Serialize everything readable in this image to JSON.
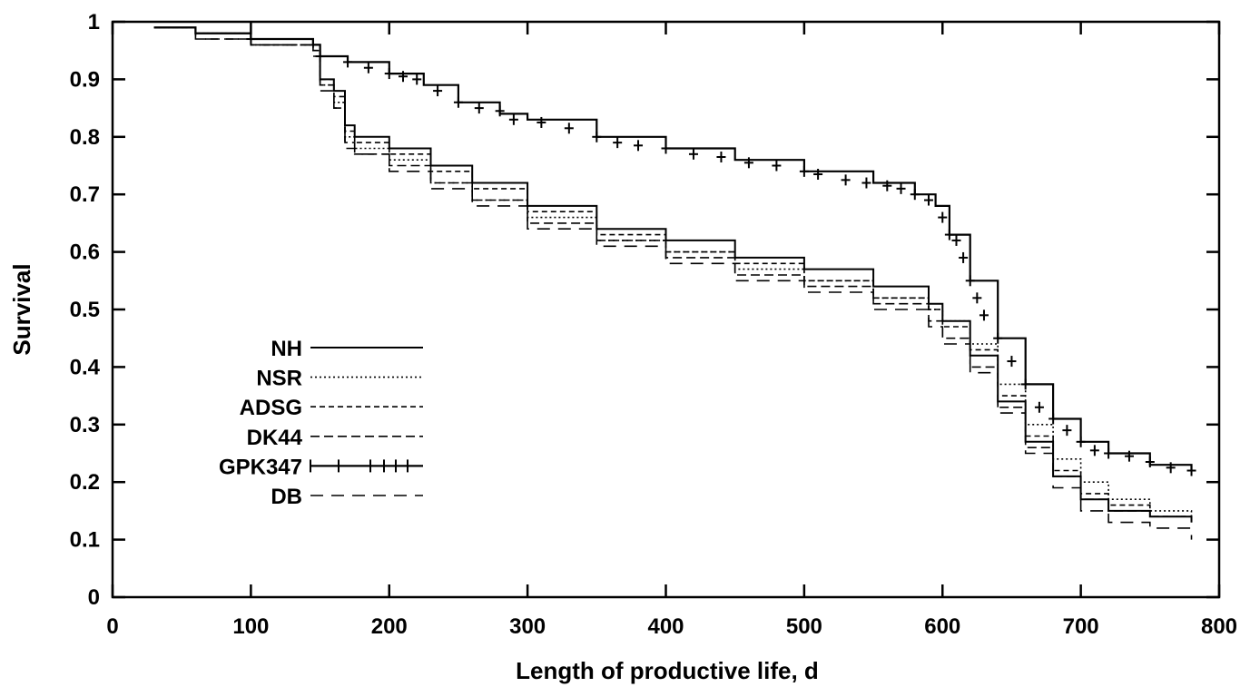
{
  "chart_data": {
    "type": "line",
    "title": "",
    "xlabel": "Length of productive life, d",
    "ylabel": "Survival",
    "xlim": [
      0,
      800
    ],
    "ylim": [
      0,
      1
    ],
    "xticks": [
      "0",
      "100",
      "200",
      "300",
      "400",
      "500",
      "600",
      "700",
      "800"
    ],
    "yticks": [
      "0",
      "0.1",
      "0.2",
      "0.3",
      "0.4",
      "0.5",
      "0.6",
      "0.7",
      "0.8",
      "0.9",
      "1"
    ],
    "grid": false,
    "legend_position": "left",
    "series": [
      {
        "name": "NH",
        "style": "solid",
        "points": [
          [
            30,
            0.99
          ],
          [
            60,
            0.98
          ],
          [
            100,
            0.97
          ],
          [
            145,
            0.96
          ],
          [
            150,
            0.9
          ],
          [
            160,
            0.88
          ],
          [
            168,
            0.82
          ],
          [
            175,
            0.8
          ],
          [
            200,
            0.78
          ],
          [
            230,
            0.75
          ],
          [
            260,
            0.72
          ],
          [
            300,
            0.68
          ],
          [
            350,
            0.64
          ],
          [
            400,
            0.62
          ],
          [
            450,
            0.59
          ],
          [
            500,
            0.57
          ],
          [
            550,
            0.54
          ],
          [
            590,
            0.51
          ],
          [
            600,
            0.48
          ],
          [
            620,
            0.42
          ],
          [
            640,
            0.34
          ],
          [
            660,
            0.27
          ],
          [
            680,
            0.21
          ],
          [
            700,
            0.17
          ],
          [
            720,
            0.15
          ],
          [
            750,
            0.14
          ],
          [
            780,
            0.13
          ]
        ]
      },
      {
        "name": "NSR",
        "style": "dotted",
        "points": [
          [
            30,
            0.99
          ],
          [
            60,
            0.98
          ],
          [
            100,
            0.96
          ],
          [
            145,
            0.95
          ],
          [
            150,
            0.89
          ],
          [
            160,
            0.86
          ],
          [
            168,
            0.8
          ],
          [
            175,
            0.78
          ],
          [
            200,
            0.76
          ],
          [
            230,
            0.72
          ],
          [
            260,
            0.69
          ],
          [
            300,
            0.66
          ],
          [
            350,
            0.62
          ],
          [
            400,
            0.6
          ],
          [
            450,
            0.57
          ],
          [
            500,
            0.55
          ],
          [
            550,
            0.52
          ],
          [
            590,
            0.5
          ],
          [
            600,
            0.48
          ],
          [
            620,
            0.44
          ],
          [
            640,
            0.37
          ],
          [
            660,
            0.3
          ],
          [
            680,
            0.24
          ],
          [
            700,
            0.2
          ],
          [
            720,
            0.17
          ],
          [
            750,
            0.15
          ],
          [
            780,
            0.14
          ]
        ]
      },
      {
        "name": "ADSG",
        "style": "dashed",
        "points": [
          [
            30,
            0.99
          ],
          [
            60,
            0.98
          ],
          [
            100,
            0.96
          ],
          [
            145,
            0.95
          ],
          [
            150,
            0.9
          ],
          [
            160,
            0.87
          ],
          [
            168,
            0.81
          ],
          [
            175,
            0.79
          ],
          [
            200,
            0.77
          ],
          [
            230,
            0.74
          ],
          [
            260,
            0.71
          ],
          [
            300,
            0.67
          ],
          [
            350,
            0.63
          ],
          [
            400,
            0.6
          ],
          [
            450,
            0.58
          ],
          [
            500,
            0.55
          ],
          [
            550,
            0.52
          ],
          [
            590,
            0.5
          ],
          [
            600,
            0.47
          ],
          [
            620,
            0.43
          ],
          [
            640,
            0.35
          ],
          [
            660,
            0.28
          ],
          [
            680,
            0.22
          ],
          [
            700,
            0.18
          ],
          [
            720,
            0.16
          ],
          [
            750,
            0.14
          ],
          [
            780,
            0.13
          ]
        ]
      },
      {
        "name": "DK44",
        "style": "longdash",
        "points": [
          [
            30,
            0.99
          ],
          [
            60,
            0.97
          ],
          [
            100,
            0.96
          ],
          [
            145,
            0.95
          ],
          [
            150,
            0.89
          ],
          [
            160,
            0.85
          ],
          [
            168,
            0.79
          ],
          [
            175,
            0.77
          ],
          [
            200,
            0.75
          ],
          [
            230,
            0.72
          ],
          [
            260,
            0.69
          ],
          [
            300,
            0.65
          ],
          [
            350,
            0.62
          ],
          [
            400,
            0.59
          ],
          [
            450,
            0.56
          ],
          [
            500,
            0.54
          ],
          [
            550,
            0.51
          ],
          [
            590,
            0.48
          ],
          [
            600,
            0.45
          ],
          [
            620,
            0.4
          ],
          [
            640,
            0.33
          ],
          [
            660,
            0.26
          ],
          [
            680,
            0.21
          ],
          [
            700,
            0.17
          ],
          [
            720,
            0.15
          ],
          [
            750,
            0.14
          ],
          [
            780,
            0.13
          ]
        ]
      },
      {
        "name": "GPK347",
        "style": "solid-censor",
        "points": [
          [
            30,
            0.99
          ],
          [
            60,
            0.98
          ],
          [
            100,
            0.97
          ],
          [
            145,
            0.96
          ],
          [
            150,
            0.94
          ],
          [
            170,
            0.93
          ],
          [
            200,
            0.91
          ],
          [
            225,
            0.89
          ],
          [
            250,
            0.86
          ],
          [
            280,
            0.84
          ],
          [
            300,
            0.83
          ],
          [
            350,
            0.8
          ],
          [
            400,
            0.78
          ],
          [
            450,
            0.76
          ],
          [
            500,
            0.74
          ],
          [
            550,
            0.72
          ],
          [
            580,
            0.7
          ],
          [
            595,
            0.68
          ],
          [
            605,
            0.63
          ],
          [
            620,
            0.55
          ],
          [
            640,
            0.45
          ],
          [
            660,
            0.37
          ],
          [
            680,
            0.31
          ],
          [
            700,
            0.27
          ],
          [
            720,
            0.25
          ],
          [
            750,
            0.23
          ],
          [
            780,
            0.22
          ]
        ]
      },
      {
        "name": "DB",
        "style": "widedash",
        "points": [
          [
            30,
            0.99
          ],
          [
            60,
            0.97
          ],
          [
            100,
            0.96
          ],
          [
            145,
            0.94
          ],
          [
            150,
            0.88
          ],
          [
            160,
            0.85
          ],
          [
            168,
            0.78
          ],
          [
            175,
            0.77
          ],
          [
            200,
            0.74
          ],
          [
            230,
            0.71
          ],
          [
            260,
            0.68
          ],
          [
            300,
            0.64
          ],
          [
            350,
            0.61
          ],
          [
            400,
            0.58
          ],
          [
            450,
            0.55
          ],
          [
            500,
            0.53
          ],
          [
            550,
            0.5
          ],
          [
            590,
            0.47
          ],
          [
            600,
            0.44
          ],
          [
            620,
            0.39
          ],
          [
            640,
            0.32
          ],
          [
            660,
            0.25
          ],
          [
            680,
            0.19
          ],
          [
            700,
            0.15
          ],
          [
            720,
            0.13
          ],
          [
            750,
            0.12
          ],
          [
            780,
            0.1
          ]
        ]
      }
    ],
    "censor_marks_gpk347": [
      [
        100,
        0.97
      ],
      [
        150,
        0.94
      ],
      [
        170,
        0.93
      ],
      [
        185,
        0.92
      ],
      [
        200,
        0.91
      ],
      [
        210,
        0.905
      ],
      [
        220,
        0.9
      ],
      [
        235,
        0.88
      ],
      [
        250,
        0.86
      ],
      [
        265,
        0.85
      ],
      [
        280,
        0.845
      ],
      [
        290,
        0.83
      ],
      [
        310,
        0.825
      ],
      [
        330,
        0.815
      ],
      [
        350,
        0.8
      ],
      [
        365,
        0.79
      ],
      [
        380,
        0.785
      ],
      [
        400,
        0.78
      ],
      [
        420,
        0.77
      ],
      [
        440,
        0.765
      ],
      [
        460,
        0.755
      ],
      [
        480,
        0.75
      ],
      [
        500,
        0.74
      ],
      [
        510,
        0.735
      ],
      [
        530,
        0.725
      ],
      [
        545,
        0.72
      ],
      [
        560,
        0.715
      ],
      [
        570,
        0.71
      ],
      [
        580,
        0.7
      ],
      [
        590,
        0.69
      ],
      [
        600,
        0.66
      ],
      [
        605,
        0.63
      ],
      [
        610,
        0.62
      ],
      [
        615,
        0.59
      ],
      [
        620,
        0.55
      ],
      [
        625,
        0.52
      ],
      [
        630,
        0.49
      ],
      [
        640,
        0.45
      ],
      [
        650,
        0.41
      ],
      [
        660,
        0.37
      ],
      [
        670,
        0.33
      ],
      [
        680,
        0.31
      ],
      [
        690,
        0.29
      ],
      [
        700,
        0.27
      ],
      [
        710,
        0.255
      ],
      [
        720,
        0.25
      ],
      [
        735,
        0.245
      ],
      [
        750,
        0.235
      ],
      [
        765,
        0.225
      ],
      [
        780,
        0.22
      ]
    ]
  }
}
